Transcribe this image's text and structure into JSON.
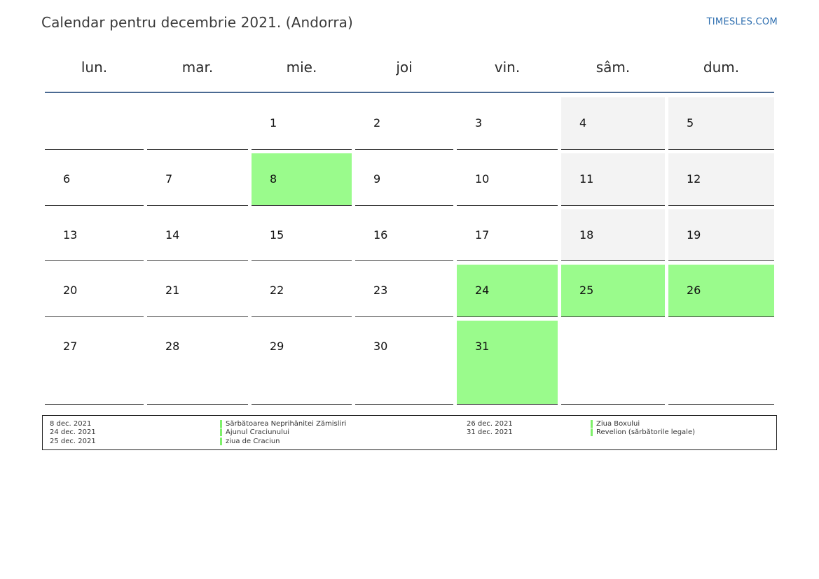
{
  "title": "Calendar pentru decembrie 2021. (Andorra)",
  "brand": "TIMESLES.COM",
  "weekdays": [
    "lun.",
    "mar.",
    "mie.",
    "joi",
    "vin.",
    "sâm.",
    "dum."
  ],
  "colors": {
    "holiday": "#9afb8c",
    "weekend": "#f3f3f3",
    "header_line": "#4a6a92",
    "brand": "#2f6fb0"
  },
  "weeks": [
    [
      {
        "day": "",
        "type": "empty"
      },
      {
        "day": "",
        "type": "empty"
      },
      {
        "day": "1",
        "type": "normal"
      },
      {
        "day": "2",
        "type": "normal"
      },
      {
        "day": "3",
        "type": "normal"
      },
      {
        "day": "4",
        "type": "weekend"
      },
      {
        "day": "5",
        "type": "weekend"
      }
    ],
    [
      {
        "day": "6",
        "type": "normal"
      },
      {
        "day": "7",
        "type": "normal"
      },
      {
        "day": "8",
        "type": "holiday"
      },
      {
        "day": "9",
        "type": "normal"
      },
      {
        "day": "10",
        "type": "normal"
      },
      {
        "day": "11",
        "type": "weekend"
      },
      {
        "day": "12",
        "type": "weekend"
      }
    ],
    [
      {
        "day": "13",
        "type": "normal"
      },
      {
        "day": "14",
        "type": "normal"
      },
      {
        "day": "15",
        "type": "normal"
      },
      {
        "day": "16",
        "type": "normal"
      },
      {
        "day": "17",
        "type": "normal"
      },
      {
        "day": "18",
        "type": "weekend"
      },
      {
        "day": "19",
        "type": "weekend"
      }
    ],
    [
      {
        "day": "20",
        "type": "normal"
      },
      {
        "day": "21",
        "type": "normal"
      },
      {
        "day": "22",
        "type": "normal"
      },
      {
        "day": "23",
        "type": "normal"
      },
      {
        "day": "24",
        "type": "holiday"
      },
      {
        "day": "25",
        "type": "holiday"
      },
      {
        "day": "26",
        "type": "holiday"
      }
    ],
    [
      {
        "day": "27",
        "type": "normal"
      },
      {
        "day": "28",
        "type": "normal"
      },
      {
        "day": "29",
        "type": "normal"
      },
      {
        "day": "30",
        "type": "normal"
      },
      {
        "day": "31",
        "type": "holiday"
      },
      {
        "day": "",
        "type": "empty"
      },
      {
        "day": "",
        "type": "empty"
      }
    ]
  ],
  "holidays_left": [
    {
      "date": "8 dec. 2021",
      "name": "Sărbătoarea Neprihănitei Zămisliri"
    },
    {
      "date": "24 dec. 2021",
      "name": "Ajunul Craciunului"
    },
    {
      "date": "25 dec. 2021",
      "name": "ziua de Craciun"
    }
  ],
  "holidays_right": [
    {
      "date": "26 dec. 2021",
      "name": "Ziua Boxului"
    },
    {
      "date": "31 dec. 2021",
      "name": "Revelion (sărbătorile legale)"
    }
  ]
}
